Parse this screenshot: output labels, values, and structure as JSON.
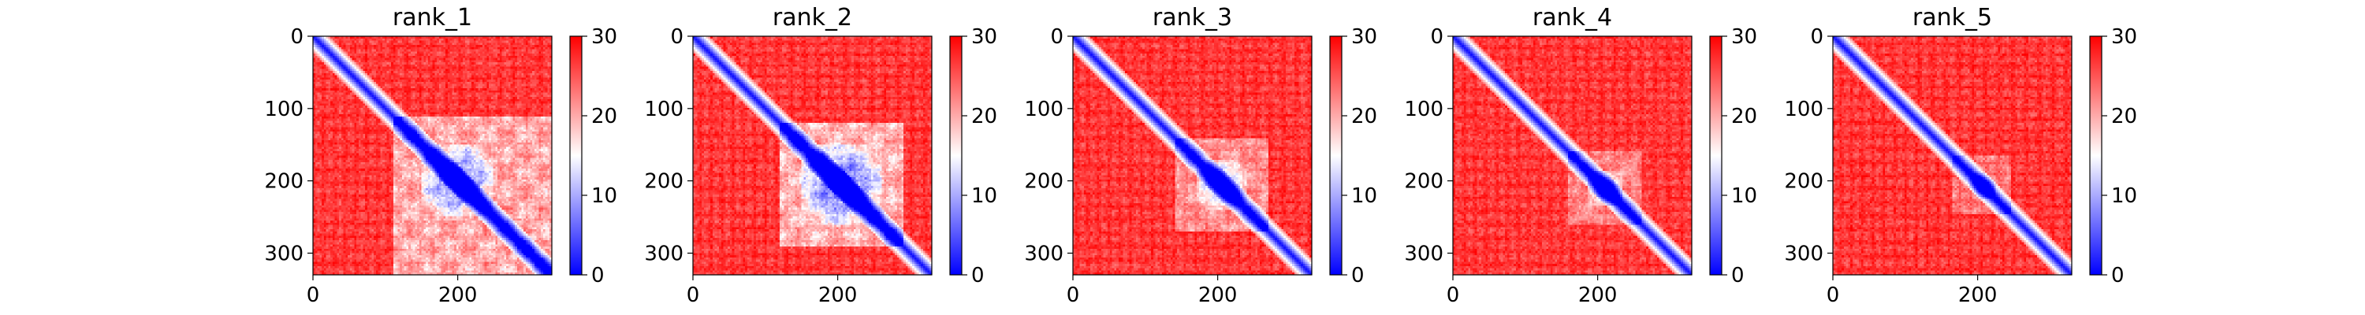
{
  "chart_data": {
    "type": "heatmap",
    "colormap": "bwr",
    "colors": {
      "low": "#0000ff",
      "mid": "#ffffff",
      "high": "#ff0000"
    },
    "matrix_size": 330,
    "xlim": [
      0,
      330
    ],
    "ylim": [
      330,
      0
    ],
    "x_ticks": [
      0,
      200
    ],
    "y_ticks": [
      0,
      100,
      200,
      300
    ],
    "colorbar": {
      "min": 0,
      "max": 30,
      "ticks": [
        0,
        10,
        20,
        30
      ]
    },
    "grid": false,
    "panels": [
      {
        "title": "rank_1",
        "core_range": [
          110,
          335
        ],
        "core_depth": 0.6,
        "block_range": [
          150,
          250
        ],
        "block_depth": 0.85
      },
      {
        "title": "rank_2",
        "core_range": [
          120,
          290
        ],
        "core_depth": 0.65,
        "block_range": [
          150,
          260
        ],
        "block_depth": 0.9
      },
      {
        "title": "rank_3",
        "core_range": [
          140,
          270
        ],
        "core_depth": 0.45,
        "block_range": [
          170,
          240
        ],
        "block_depth": 0.8
      },
      {
        "title": "rank_4",
        "core_range": [
          160,
          260
        ],
        "core_depth": 0.4,
        "block_range": [
          185,
          235
        ],
        "block_depth": 0.8
      },
      {
        "title": "rank_5",
        "core_range": [
          165,
          245
        ],
        "core_depth": 0.3,
        "block_range": [
          190,
          225
        ],
        "block_depth": 0.75
      }
    ]
  }
}
